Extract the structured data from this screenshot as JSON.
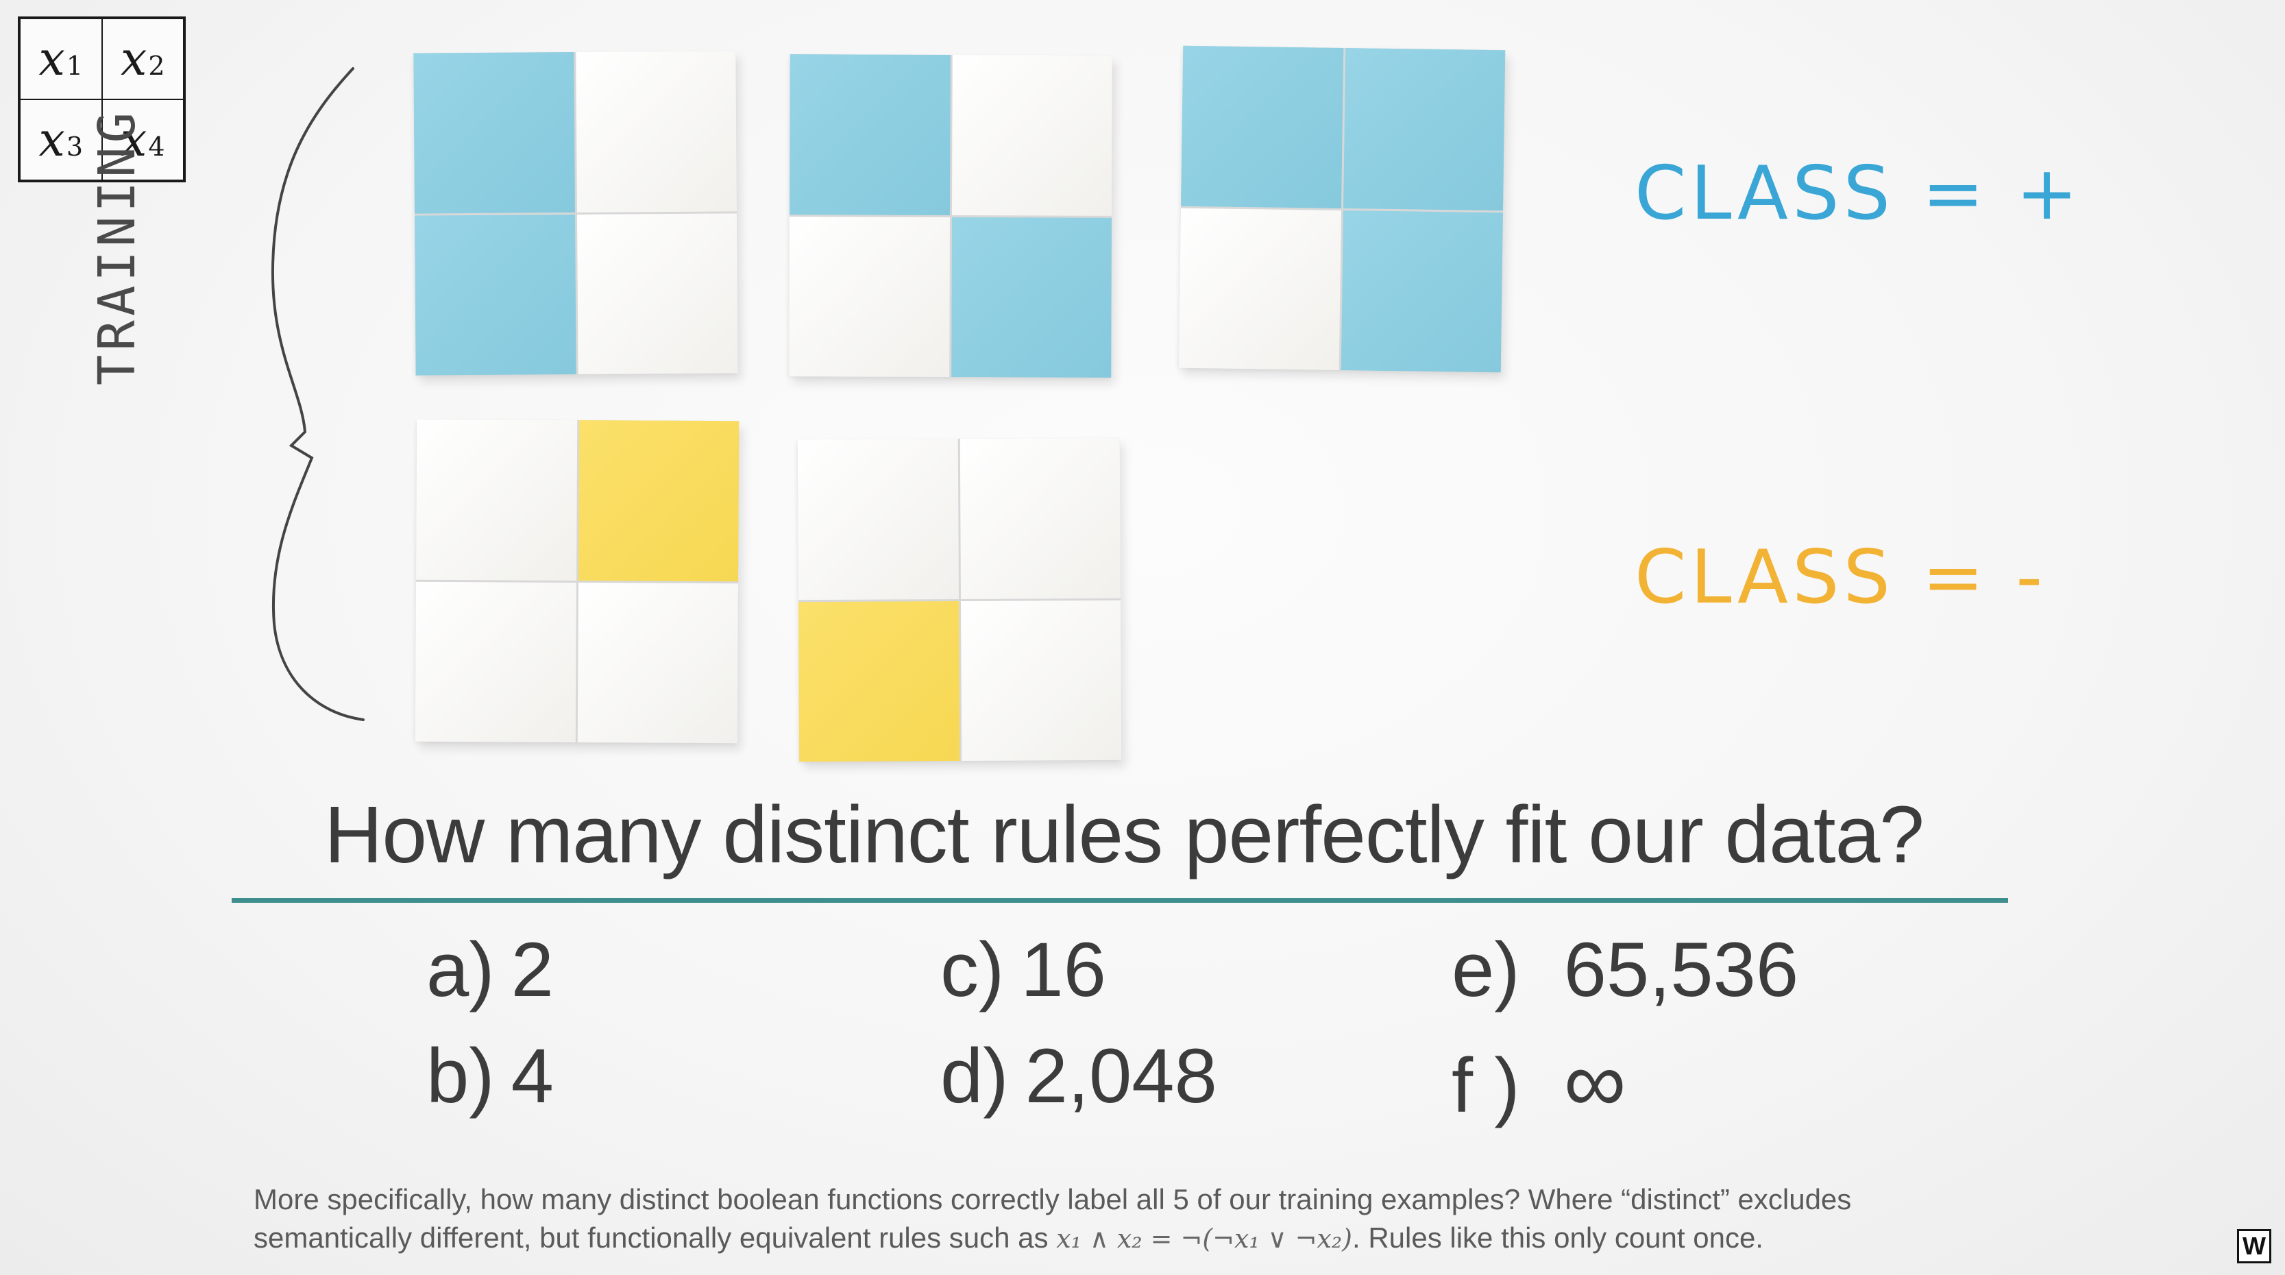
{
  "legend": {
    "cells": [
      {
        "var": "x",
        "sub": "1"
      },
      {
        "var": "x",
        "sub": "2"
      },
      {
        "var": "x",
        "sub": "3"
      },
      {
        "var": "x",
        "sub": "4"
      }
    ]
  },
  "training_label": "TRAINING",
  "positive_examples": [
    [
      "blue",
      "white",
      "blue",
      "white"
    ],
    [
      "blue",
      "white",
      "white",
      "blue"
    ],
    [
      "blue",
      "blue",
      "white",
      "blue"
    ]
  ],
  "negative_examples": [
    [
      "white",
      "yellow",
      "white",
      "white"
    ],
    [
      "white",
      "white",
      "yellow",
      "white"
    ]
  ],
  "class_positive": "CLASS = +",
  "class_negative": "CLASS = -",
  "colors": {
    "blue": "#8dcde0",
    "yellow": "#f9dc5c",
    "white": "#f7f6f2",
    "rule_line": "#3e8e8e",
    "class_positive": "#39a6d6",
    "class_negative": "#f2b233"
  },
  "question": "How many distinct rules perfectly fit our data?",
  "options": [
    {
      "letter": "a)",
      "value": "2"
    },
    {
      "letter": "b)",
      "value": "4"
    },
    {
      "letter": "c)",
      "value": "16"
    },
    {
      "letter": "d)",
      "value": "2,048"
    },
    {
      "letter": "e)",
      "value": "65,536"
    },
    {
      "letter": "f )",
      "value": "∞"
    }
  ],
  "footnote": {
    "line1": "More specifically, how many distinct boolean functions correctly label all 5 of our training examples? Where “distinct” excludes",
    "line2_pre": "semantically different, but functionally equivalent rules such as",
    "math": "x₁ ∧ x₂ = ¬(¬x₁ ∨ ¬x₂)",
    "line2_post": ". Rules like this only count once."
  },
  "logo": "W"
}
